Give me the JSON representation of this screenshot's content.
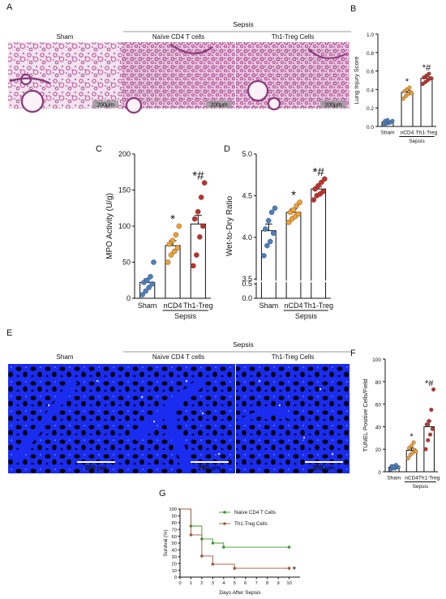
{
  "panels": {
    "A": {
      "letter": "A",
      "group_header": "Sepsis",
      "image_labels": [
        "Sham",
        "Naïve CD4 T cells",
        "Th1-Treg Cells"
      ],
      "scale_label": "200μm"
    },
    "E": {
      "letter": "E",
      "group_header": "Sepsis",
      "image_labels": [
        "Sham",
        "Naïve CD4 T cells",
        "Th1-Treg Cells"
      ],
      "scale_label": "200 μm"
    },
    "B": {
      "letter": "B"
    },
    "C": {
      "letter": "C"
    },
    "D": {
      "letter": "D"
    },
    "F": {
      "letter": "F"
    },
    "G": {
      "letter": "G"
    }
  },
  "colors": {
    "sham": "#4a7fc0",
    "ncd4": "#f0a030",
    "th1treg": "#c0302a",
    "he_stain": "#c96aa6",
    "tunel_blue": "#1a2cf0",
    "green_line": "#3a9a2a",
    "brown_line": "#a0583a"
  },
  "chart_data": [
    {
      "id": "B",
      "type": "bar",
      "categories": [
        "Sham",
        "nCD4",
        "Th1-Treg"
      ],
      "group_label": "Sepsis",
      "ylabel": "Lung Injury Score",
      "ylim": [
        0,
        1.0
      ],
      "yticks": [
        0.0,
        0.2,
        0.4,
        0.6,
        0.8,
        1.0
      ],
      "values": [
        0.05,
        0.37,
        0.52
      ],
      "errors": [
        0.01,
        0.02,
        0.02
      ],
      "significance": [
        "",
        "*",
        "*#"
      ],
      "points": [
        [
          0.02,
          0.03,
          0.04,
          0.05,
          0.06,
          0.07,
          0.04,
          0.06
        ],
        [
          0.3,
          0.33,
          0.35,
          0.37,
          0.38,
          0.4,
          0.42,
          0.36
        ],
        [
          0.46,
          0.48,
          0.5,
          0.52,
          0.53,
          0.55,
          0.57,
          0.52
        ]
      ]
    },
    {
      "id": "C",
      "type": "bar",
      "categories": [
        "Sham",
        "nCD4",
        "Th1-Treg"
      ],
      "group_label": "Sepsis",
      "ylabel": "MPO Activity (U/g)",
      "ylim": [
        0,
        200
      ],
      "yticks": [
        0,
        50,
        100,
        150,
        200
      ],
      "values": [
        22,
        73,
        103
      ],
      "errors": [
        5,
        7,
        12
      ],
      "significance": [
        "",
        "*",
        "*#"
      ],
      "points": [
        [
          5,
          10,
          15,
          20,
          22,
          25,
          30,
          50
        ],
        [
          50,
          60,
          65,
          70,
          75,
          80,
          88,
          100
        ],
        [
          45,
          60,
          85,
          100,
          110,
          120,
          140,
          160
        ]
      ]
    },
    {
      "id": "D",
      "type": "bar",
      "categories": [
        "Sham",
        "nCD4",
        "Th1-Treg"
      ],
      "group_label": "Sepsis",
      "ylabel": "Wet-to-Dry Ratio",
      "ylim": [
        0,
        5.0
      ],
      "axis_break": [
        0.5,
        3.5
      ],
      "yticks": [
        0.0,
        0.5,
        3.5,
        4.0,
        4.5,
        5.0
      ],
      "values": [
        4.08,
        4.3,
        4.58
      ],
      "errors": [
        0.08,
        0.04,
        0.03
      ],
      "significance": [
        "",
        "*",
        "*#"
      ],
      "points": [
        [
          3.78,
          3.9,
          3.95,
          4.05,
          4.1,
          4.2,
          4.3,
          4.35
        ],
        [
          4.18,
          4.22,
          4.25,
          4.28,
          4.3,
          4.33,
          4.38,
          4.42
        ],
        [
          4.45,
          4.5,
          4.52,
          4.55,
          4.58,
          4.62,
          4.66,
          4.7
        ]
      ]
    },
    {
      "id": "F",
      "type": "bar",
      "categories": [
        "Sham",
        "nCD4",
        "Th1-Treg"
      ],
      "group_label": "Sepsis",
      "ylabel": "TUNEL Positive Cells/Field",
      "ylim": [
        0,
        100
      ],
      "yticks": [
        0,
        20,
        40,
        60,
        80,
        100
      ],
      "values": [
        4,
        19,
        40
      ],
      "errors": [
        1,
        2,
        5
      ],
      "significance": [
        "",
        "*",
        "*#"
      ],
      "points": [
        [
          2,
          3,
          3,
          4,
          5,
          5,
          6,
          4
        ],
        [
          12,
          15,
          17,
          19,
          21,
          23,
          26,
          18
        ],
        [
          20,
          28,
          33,
          38,
          42,
          45,
          55,
          73
        ]
      ]
    },
    {
      "id": "G",
      "type": "line",
      "xlabel": "Days After Sepsis",
      "ylabel": "Survival (%)",
      "xlim": [
        0,
        11
      ],
      "ylim": [
        0,
        100
      ],
      "xticks": [
        0,
        1,
        2,
        3,
        4,
        5,
        6,
        7,
        8,
        9,
        10
      ],
      "yticks": [
        0,
        10,
        20,
        30,
        40,
        50,
        60,
        70,
        80,
        90,
        100
      ],
      "significance": "*",
      "series": [
        {
          "name": "Naïve CD4 T Cells",
          "color": "#3a9a2a",
          "steps": [
            [
              0,
              100
            ],
            [
              1,
              75
            ],
            [
              2,
              56
            ],
            [
              3,
              50
            ],
            [
              4,
              44
            ],
            [
              10,
              44
            ]
          ],
          "markers": [
            [
              1,
              75
            ],
            [
              2,
              56
            ],
            [
              3,
              50
            ],
            [
              4,
              44
            ],
            [
              10,
              44
            ]
          ]
        },
        {
          "name": "Th1-Treg Cells",
          "color": "#a0583a",
          "steps": [
            [
              0,
              100
            ],
            [
              1,
              62
            ],
            [
              2,
              31
            ],
            [
              3,
              19
            ],
            [
              5,
              13
            ],
            [
              10,
              13
            ]
          ],
          "markers": [
            [
              1,
              62
            ],
            [
              2,
              31
            ],
            [
              3,
              19
            ],
            [
              5,
              13
            ],
            [
              10,
              13
            ]
          ]
        }
      ]
    }
  ]
}
